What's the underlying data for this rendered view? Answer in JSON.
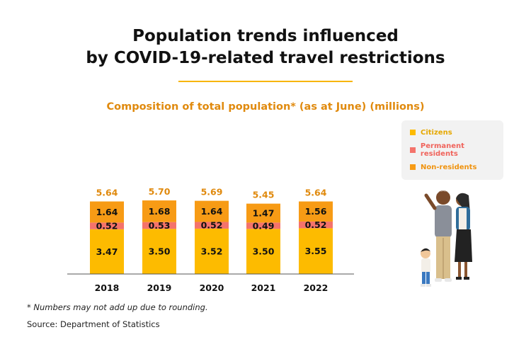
{
  "title_lines": [
    "Population trends influenced",
    "by COVID-19-related travel restrictions"
  ],
  "chart_data": {
    "type": "bar",
    "stacked": true,
    "title": "Composition of total population* (as at June) (millions)",
    "categories": [
      "2018",
      "2019",
      "2020",
      "2021",
      "2022"
    ],
    "series": [
      {
        "name": "Citizens",
        "color": "#fdbb00",
        "values": [
          3.47,
          3.5,
          3.52,
          3.5,
          3.55
        ]
      },
      {
        "name": "Permanent residents",
        "color": "#f4736b",
        "values": [
          0.52,
          0.53,
          0.52,
          0.49,
          0.52
        ]
      },
      {
        "name": "Non-residents",
        "color": "#f79b15",
        "values": [
          1.64,
          1.68,
          1.64,
          1.47,
          1.56
        ]
      }
    ],
    "totals": [
      5.64,
      5.7,
      5.69,
      5.45,
      5.64
    ],
    "totals_color": "#e08a0e",
    "legend_position": "right",
    "grid": false
  },
  "legend_colors": {
    "Citizens": "#e6a800",
    "Permanent residents": "#f0645c",
    "Non-residents": "#f0930f"
  },
  "footnote": "* Numbers may not add up due to rounding.",
  "source": "Source: Department of Statistics"
}
